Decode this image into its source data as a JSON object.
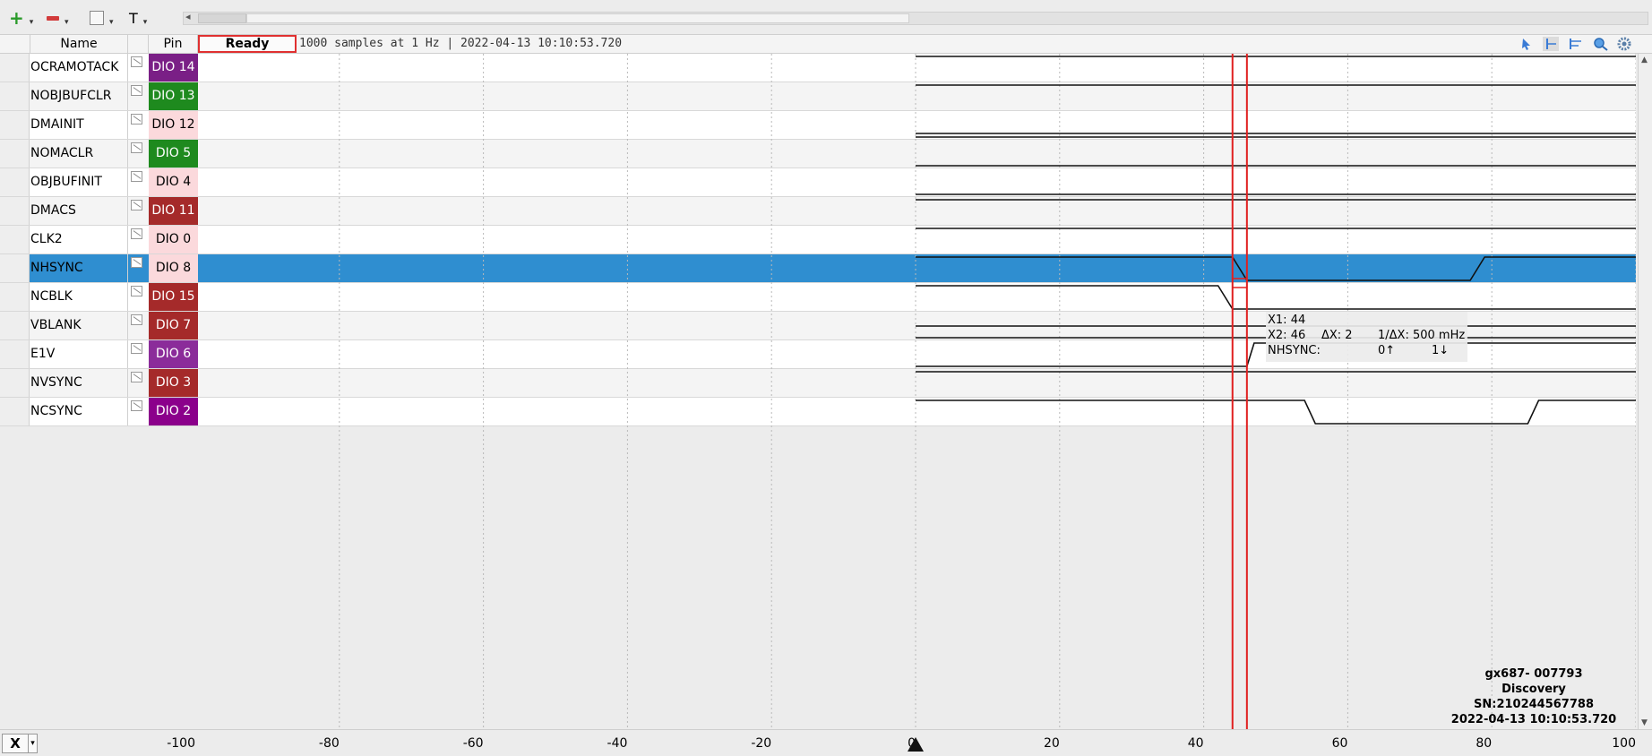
{
  "toolbar": {
    "add_icon": "plus-icon",
    "remove_icon": "minus-icon",
    "edit_icon": "pen-icon",
    "text_button": "T"
  },
  "header": {
    "col_name": "Name",
    "col_pin": "Pin",
    "status": "Ready",
    "info": "1000 samples at 1 Hz | 2022-04-13 10:10:53.720"
  },
  "signals": [
    {
      "name": "OCRAMOTACK",
      "pin": "DIO 14",
      "pin_bg": "#7a1f86",
      "pin_fg": "#ffffff",
      "selected": false
    },
    {
      "name": "NOBJBUFCLR",
      "pin": "DIO 13",
      "pin_bg": "#1e8a1e",
      "pin_fg": "#ffffff",
      "selected": false
    },
    {
      "name": "DMAINIT",
      "pin": "DIO 12",
      "pin_bg": "#fbd9dc",
      "pin_fg": "#000000",
      "selected": false
    },
    {
      "name": "NOMACLR",
      "pin": "DIO  5",
      "pin_bg": "#1e8a1e",
      "pin_fg": "#ffffff",
      "selected": false
    },
    {
      "name": "OBJBUFINIT",
      "pin": "DIO  4",
      "pin_bg": "#fbd9dc",
      "pin_fg": "#000000",
      "selected": false
    },
    {
      "name": "DMACS",
      "pin": "DIO 11",
      "pin_bg": "#a52a2a",
      "pin_fg": "#ffffff",
      "selected": false
    },
    {
      "name": "CLK2",
      "pin": "DIO  0",
      "pin_bg": "#fbd9dc",
      "pin_fg": "#000000",
      "selected": false
    },
    {
      "name": "NHSYNC",
      "pin": "DIO  8",
      "pin_bg": "#fbd9dc",
      "pin_fg": "#000000",
      "selected": true
    },
    {
      "name": "NCBLK",
      "pin": "DIO 15",
      "pin_bg": "#a52a2a",
      "pin_fg": "#ffffff",
      "selected": false
    },
    {
      "name": "VBLANK",
      "pin": "DIO  7",
      "pin_bg": "#a52a2a",
      "pin_fg": "#ffffff",
      "selected": false
    },
    {
      "name": "E1V",
      "pin": "DIO  6",
      "pin_bg": "#8b2c9a",
      "pin_fg": "#ffffff",
      "selected": false
    },
    {
      "name": "NVSYNC",
      "pin": "DIO  3",
      "pin_bg": "#a52a2a",
      "pin_fg": "#ffffff",
      "selected": false
    },
    {
      "name": "NCSYNC",
      "pin": "DIO  2",
      "pin_bg": "#8b008b",
      "pin_fg": "#ffffff",
      "selected": false
    }
  ],
  "axis": {
    "ticks": [
      "-100",
      "-80",
      "-60",
      "-40",
      "-20",
      "0",
      "20",
      "40",
      "60",
      "80",
      "100"
    ],
    "x_button": "X"
  },
  "cursors": {
    "x1": 44,
    "x2": 46,
    "color": "#e02020"
  },
  "tooltip": {
    "x1": "X1: 44",
    "x2": "X2: 46",
    "dx": "ΔX: 2",
    "inv_dx": "1/ΔX: 500 mHz",
    "channel": "NHSYNC:",
    "rise": "0↑",
    "fall": "1↓"
  },
  "device": {
    "line1": "gx687- 007793",
    "line2": "Discovery",
    "line3": "SN:210244567788",
    "line4": "2022-04-13 10:10:53.720"
  }
}
